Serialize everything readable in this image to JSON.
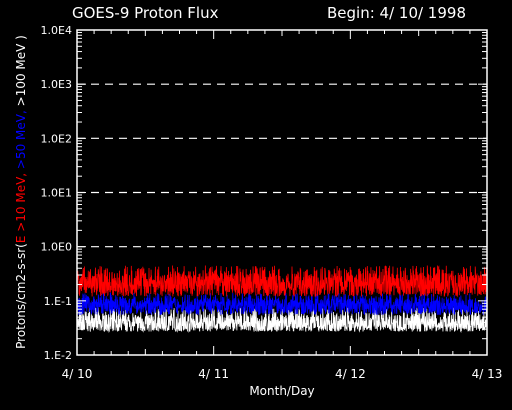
{
  "chart_data": {
    "type": "line",
    "title": "GOES-9 Proton Flux",
    "begin_label": "Begin: 4/ 10/ 1998",
    "xlabel": "Month/Day",
    "ylabel_parts": [
      {
        "text": "Protons/cm2-s-sr(",
        "color": "#ffffff"
      },
      {
        "text": "E >10 MeV, ",
        "color": "#ff0000"
      },
      {
        "text": ">50 MeV, ",
        "color": "#0000ff"
      },
      {
        "text": ">100 MeV )",
        "color": "#ffffff"
      }
    ],
    "x_ticks": [
      {
        "day": 0,
        "label": "4/ 10"
      },
      {
        "day": 1,
        "label": "4/ 11"
      },
      {
        "day": 2,
        "label": "4/ 12"
      },
      {
        "day": 3,
        "label": "4/ 13"
      }
    ],
    "xlim": [
      0,
      3
    ],
    "ylim": [
      0.01,
      10000
    ],
    "log_y": true,
    "y_ticks": [
      {
        "value": 0.01,
        "label": "1.E-2"
      },
      {
        "value": 0.1,
        "label": "1.E-1"
      },
      {
        "value": 1,
        "label": "1.0E0"
      },
      {
        "value": 10,
        "label": "1.0E1"
      },
      {
        "value": 100,
        "label": "1.0E2"
      },
      {
        "value": 1000,
        "label": "1.0E3"
      },
      {
        "value": 10000,
        "label": "1.0E4"
      }
    ],
    "gridlines_dashed": [
      1,
      10,
      100,
      1000
    ],
    "series": [
      {
        "color": "#ffffff",
        "baseline": 0.035,
        "low": 0.027,
        "high": 0.075
      },
      {
        "color": "#0000ff",
        "baseline": 0.08,
        "low": 0.055,
        "high": 0.14
      },
      {
        "color": "#ff0000",
        "baseline": 0.2,
        "low": 0.12,
        "high": 0.45
      }
    ],
    "colors": {
      "background": "#000000",
      "axes": "#ffffff"
    }
  }
}
